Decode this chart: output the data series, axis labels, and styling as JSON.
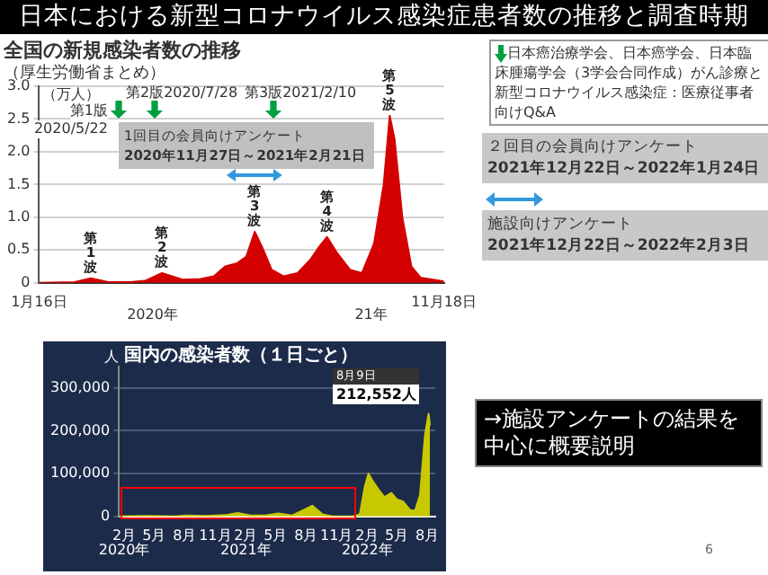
{
  "chart_data": [
    {
      "type": "area",
      "title": "全国の新規感染者数の推移",
      "subtitle": "（厚生労働省まとめ）",
      "ylabel": "（万人）",
      "color": "#d40000",
      "x": [
        "2020-01-16",
        "2020-03-15",
        "2020-04-11",
        "2020-05-10",
        "2020-06-15",
        "2020-07-10",
        "2020-08-07",
        "2020-09-10",
        "2020-10-10",
        "2020-11-01",
        "2020-11-20",
        "2020-12-10",
        "2020-12-25",
        "2021-01-08",
        "2021-01-20",
        "2021-02-05",
        "2021-02-25",
        "2021-03-20",
        "2021-04-10",
        "2021-04-25",
        "2021-05-08",
        "2021-05-25",
        "2021-06-15",
        "2021-07-05",
        "2021-07-25",
        "2021-08-10",
        "2021-08-20",
        "2021-08-28",
        "2021-09-10",
        "2021-09-25",
        "2021-10-10",
        "2021-11-18"
      ],
      "values": [
        0,
        0.01,
        0.07,
        0.01,
        0.01,
        0.03,
        0.15,
        0.05,
        0.06,
        0.1,
        0.25,
        0.3,
        0.4,
        0.78,
        0.55,
        0.2,
        0.1,
        0.15,
        0.35,
        0.55,
        0.7,
        0.45,
        0.2,
        0.15,
        0.6,
        1.5,
        2.55,
        2.2,
        1.0,
        0.25,
        0.08,
        0.02
      ],
      "xlim": [
        "2020-01-16",
        "2021-11-18"
      ],
      "xticks": [
        {
          "value": "2020-01-16",
          "label": "1月16日"
        },
        {
          "value": "2021-11-18",
          "label": "11月18日"
        }
      ],
      "ylim": [
        0,
        3
      ],
      "yticks": [
        0,
        0.5,
        {
          "value": 1,
          "label": "1.0"
        },
        1.5,
        {
          "value": 2,
          "label": "2.0"
        },
        2.5,
        {
          "value": 3,
          "label": "3.0"
        }
      ],
      "grid": "y",
      "annotations": [
        "日本における新型コロナウイルス感染症患者数の推移と調査時期",
        "2020年",
        "21年",
        "日本癌治療学会、日本癌学会、日本臨床腫瘍学会（3学会合同作成）がん診療と新型コロナウイルス感染症：医療従事者向けQ&A",
        "２回目の会員向けアンケート 2021年12月22日～2022年1月24日",
        "施設向けアンケート 2021年12月22日～2022年2月3日",
        "→施設アンケートの結果を中心に概要説明",
        "6",
        "第1版 2020/5/22",
        "第2版2020/7/28",
        "第3版2021/2/10",
        "1回目の会員向けアンケート 2020年11月27日～2021年2月21日",
        {
          "text": "第1波",
          "x": "2020-04-11",
          "y": 0.07
        },
        {
          "text": "第2波",
          "x": "2020-08-07",
          "y": 0.15
        },
        {
          "text": "第3波",
          "x": "2021-01-08",
          "y": 0.78
        },
        {
          "text": "第4波",
          "x": "2021-05-08",
          "y": 0.7
        },
        {
          "text": "第5波",
          "x": "2021-08-20",
          "y": 2.55
        }
      ]
    },
    {
      "type": "area",
      "title": "国内の感染者数（１日ごと）",
      "ylabel": "人",
      "color": "#c8c800",
      "x": [
        "2020-01-16",
        "2020-04-11",
        "2020-07-01",
        "2020-08-07",
        "2020-10-01",
        "2020-12-01",
        "2021-01-08",
        "2021-02-15",
        "2021-04-01",
        "2021-05-10",
        "2021-06-20",
        "2021-08-20",
        "2021-09-20",
        "2021-10-20",
        "2021-12-20",
        "2022-01-10",
        "2022-01-25",
        "2022-02-05",
        "2022-02-20",
        "2022-03-10",
        "2022-03-25",
        "2022-04-15",
        "2022-05-01",
        "2022-05-20",
        "2022-06-10",
        "2022-06-25",
        "2022-07-10",
        "2022-07-25",
        "2022-08-05",
        "2022-08-09"
      ],
      "values": [
        0,
        1000,
        0,
        2000,
        1000,
        3000,
        8000,
        2000,
        2000,
        7000,
        2000,
        25000,
        5000,
        0,
        0,
        5000,
        70000,
        100000,
        80000,
        60000,
        45000,
        55000,
        40000,
        35000,
        15000,
        13000,
        50000,
        190000,
        240000,
        212552
      ],
      "xlim": [
        "2020-01-16",
        "2022-08-25"
      ],
      "xticks": [
        {
          "value": "2020-02-01",
          "label": "2月"
        },
        {
          "value": "2020-05-01",
          "label": "5月"
        },
        {
          "value": "2020-08-01",
          "label": "8月"
        },
        {
          "value": "2020-11-01",
          "label": "11月"
        },
        {
          "value": "2021-02-01",
          "label": "2月"
        },
        {
          "value": "2021-05-01",
          "label": "5月"
        },
        {
          "value": "2021-08-01",
          "label": "8月"
        },
        {
          "value": "2021-11-01",
          "label": "11月"
        },
        {
          "value": "2022-02-01",
          "label": "2月"
        },
        {
          "value": "2022-05-01",
          "label": "5月"
        },
        {
          "value": "2022-08-01",
          "label": "8月"
        }
      ],
      "ylim": [
        0,
        350000
      ],
      "yticks": [
        0,
        {
          "value": 100000,
          "label": "100,000"
        },
        {
          "value": 200000,
          "label": "200,000"
        },
        {
          "value": 300000,
          "label": "300,000"
        }
      ],
      "grid": "y",
      "annotations": [
        "2020年",
        "2021年",
        "2022年",
        {
          "text": "8月9日 212,552人",
          "x": "2022-08-09",
          "y": 212552
        }
      ]
    }
  ]
}
